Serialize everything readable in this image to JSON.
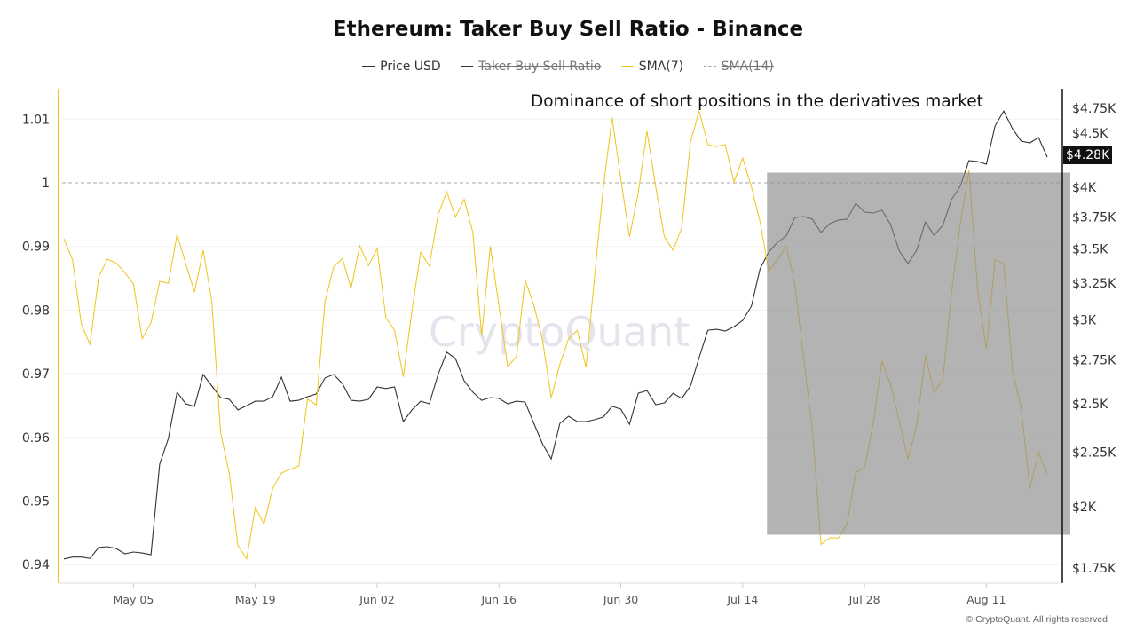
{
  "chart_data": {
    "type": "line",
    "title": "Ethereum: Taker Buy Sell Ratio - Binance",
    "annotation": "Dominance of short positions in the derivatives market",
    "legend": [
      {
        "name": "Price USD",
        "color": "#333333",
        "visible": true,
        "style": "solid"
      },
      {
        "name": "Taker Buy Sell Ratio",
        "color": "#333333",
        "visible": false,
        "style": "solid"
      },
      {
        "name": "SMA(7)",
        "color": "#f0c419",
        "visible": true,
        "style": "solid"
      },
      {
        "name": "SMA(14)",
        "color": "#999999",
        "visible": false,
        "style": "dashed"
      }
    ],
    "legend_position": "top-center",
    "left_axis": {
      "ticks": [
        "1.01",
        "1",
        "0.99",
        "0.98",
        "0.97",
        "0.96",
        "0.95",
        "0.94"
      ],
      "tick_values": [
        1.01,
        1,
        0.99,
        0.98,
        0.97,
        0.96,
        0.95,
        0.94
      ],
      "reference_line": 1
    },
    "right_axis": {
      "scale": "log",
      "ticks": [
        "$4.75K",
        "$4.5K",
        "$4K",
        "$3.75K",
        "$3.5K",
        "$3.25K",
        "$3K",
        "$2.75K",
        "$2.5K",
        "$2.25K",
        "$2K",
        "$1.75K"
      ],
      "tick_values": [
        4750,
        4500,
        4000,
        3750,
        3500,
        3250,
        3000,
        2750,
        2500,
        2250,
        2000,
        1750
      ]
    },
    "last_price_label": "$4.28K",
    "x_ticks": [
      "May 05",
      "May 19",
      "Jun 02",
      "Jun 16",
      "Jun 30",
      "Jul 14",
      "Jul 28",
      "Aug 11"
    ],
    "highlight_range": {
      "from": "Jul 17",
      "to": "Aug 18",
      "ratio_from": 0.9447,
      "ratio_to": 1.0016,
      "color": "#8a8a8a"
    },
    "x": [
      "Apr 27",
      "Apr 28",
      "Apr 29",
      "Apr 30",
      "May 01",
      "May 02",
      "May 03",
      "May 04",
      "May 05",
      "May 06",
      "May 07",
      "May 08",
      "May 09",
      "May 10",
      "May 11",
      "May 12",
      "May 13",
      "May 14",
      "May 15",
      "May 16",
      "May 17",
      "May 18",
      "May 19",
      "May 20",
      "May 21",
      "May 22",
      "May 23",
      "May 24",
      "May 25",
      "May 26",
      "May 27",
      "May 28",
      "May 29",
      "May 30",
      "May 31",
      "Jun 01",
      "Jun 02",
      "Jun 03",
      "Jun 04",
      "Jun 05",
      "Jun 06",
      "Jun 07",
      "Jun 08",
      "Jun 09",
      "Jun 10",
      "Jun 11",
      "Jun 12",
      "Jun 13",
      "Jun 14",
      "Jun 15",
      "Jun 16",
      "Jun 17",
      "Jun 18",
      "Jun 19",
      "Jun 20",
      "Jun 21",
      "Jun 22",
      "Jun 23",
      "Jun 24",
      "Jun 25",
      "Jun 26",
      "Jun 27",
      "Jun 28",
      "Jun 29",
      "Jun 30",
      "Jul 01",
      "Jul 02",
      "Jul 03",
      "Jul 04",
      "Jul 05",
      "Jul 06",
      "Jul 07",
      "Jul 08",
      "Jul 09",
      "Jul 10",
      "Jul 11",
      "Jul 12",
      "Jul 13",
      "Jul 14",
      "Jul 15",
      "Jul 16",
      "Jul 17",
      "Jul 18",
      "Jul 19",
      "Jul 20",
      "Jul 21",
      "Jul 22",
      "Jul 23",
      "Jul 24",
      "Jul 25",
      "Jul 26",
      "Jul 27",
      "Jul 28",
      "Jul 29",
      "Jul 30",
      "Jul 31",
      "Aug 01",
      "Aug 02",
      "Aug 03",
      "Aug 04",
      "Aug 05",
      "Aug 06",
      "Aug 07",
      "Aug 08",
      "Aug 09",
      "Aug 10",
      "Aug 11",
      "Aug 12",
      "Aug 13",
      "Aug 14",
      "Aug 15",
      "Aug 16",
      "Aug 17",
      "Aug 18"
    ],
    "series": [
      {
        "name": "Price USD",
        "axis": "right",
        "color": "#333333",
        "values": [
          1785,
          1792,
          1792,
          1787,
          1830,
          1833,
          1826,
          1805,
          1812,
          1808,
          1801,
          2193,
          2319,
          2564,
          2500,
          2486,
          2664,
          2598,
          2534,
          2524,
          2467,
          2490,
          2514,
          2514,
          2539,
          2649,
          2514,
          2519,
          2539,
          2554,
          2644,
          2664,
          2613,
          2519,
          2514,
          2524,
          2593,
          2584,
          2593,
          2405,
          2467,
          2514,
          2500,
          2664,
          2796,
          2758,
          2628,
          2564,
          2519,
          2534,
          2529,
          2500,
          2514,
          2509,
          2396,
          2292,
          2218,
          2396,
          2433,
          2405,
          2405,
          2415,
          2429,
          2486,
          2471,
          2391,
          2558,
          2573,
          2495,
          2505,
          2558,
          2529,
          2598,
          2764,
          2933,
          2939,
          2928,
          2956,
          2996,
          3090,
          3351,
          3476,
          3550,
          3599,
          3747,
          3754,
          3733,
          3627,
          3697,
          3725,
          3733,
          3865,
          3791,
          3784,
          3806,
          3690,
          3483,
          3390,
          3489,
          3711,
          3605,
          3683,
          3895,
          4009,
          4239,
          4231,
          4207,
          4571,
          4722,
          4544,
          4423,
          4406,
          4457,
          4272
        ]
      },
      {
        "name": "SMA(7)",
        "axis": "left",
        "color": "#f0c419",
        "values": [
          0.9912,
          0.9879,
          0.9778,
          0.9746,
          0.9852,
          0.988,
          0.9874,
          0.9859,
          0.9841,
          0.9755,
          0.978,
          0.9845,
          0.9842,
          0.9919,
          0.9873,
          0.9828,
          0.9894,
          0.9813,
          0.9608,
          0.9544,
          0.943,
          0.9409,
          0.949,
          0.9464,
          0.952,
          0.9544,
          0.955,
          0.9555,
          0.966,
          0.9651,
          0.9813,
          0.9868,
          0.9881,
          0.9834,
          0.9901,
          0.987,
          0.9897,
          0.9788,
          0.9768,
          0.9695,
          0.9799,
          0.9891,
          0.9869,
          0.995,
          0.9986,
          0.9946,
          0.9974,
          0.9922,
          0.976,
          0.99,
          0.9806,
          0.9711,
          0.9727,
          0.9847,
          0.9808,
          0.9753,
          0.9662,
          0.9715,
          0.9755,
          0.9768,
          0.971,
          0.9855,
          0.9994,
          1.0102,
          1.0006,
          0.9915,
          0.9985,
          1.0081,
          0.9994,
          0.9915,
          0.9894,
          0.9929,
          1.0064,
          1.0113,
          1.006,
          1.0057,
          1.006,
          1.0001,
          1.0039,
          0.9994,
          0.9939,
          0.9861,
          0.9879,
          0.9901,
          0.9841,
          0.9725,
          0.9614,
          0.9432,
          0.9442,
          0.9442,
          0.9464,
          0.9545,
          0.9552,
          0.9622,
          0.972,
          0.9683,
          0.9625,
          0.9566,
          0.9618,
          0.9729,
          0.9672,
          0.969,
          0.9827,
          0.9934,
          1.002,
          0.9831,
          0.9739,
          0.9879,
          0.9873,
          0.9706,
          0.9646,
          0.952,
          0.9576,
          0.9541
        ]
      }
    ]
  },
  "watermark": "CryptoQuant",
  "credit": "© CryptoQuant. All rights reserved"
}
